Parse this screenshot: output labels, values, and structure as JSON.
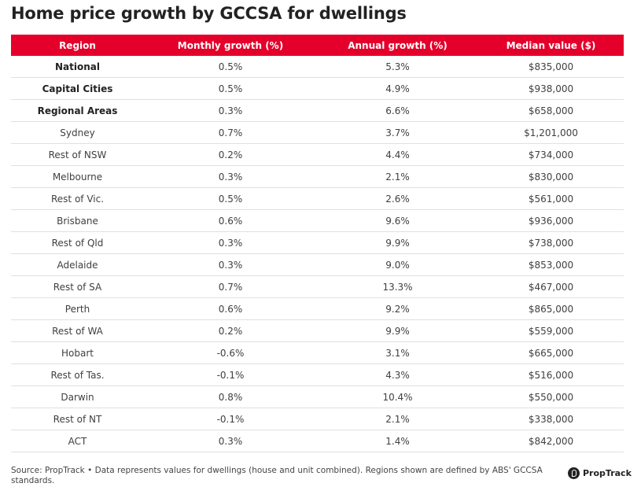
{
  "title": "Home price growth by GCCSA for dwellings",
  "chart_data": {
    "type": "table",
    "title": "Home price growth by GCCSA for dwellings",
    "columns": [
      "Region",
      "Monthly growth (%)",
      "Annual growth (%)",
      "Median value ($)"
    ],
    "rows": [
      {
        "region": "National",
        "monthly": "0.5%",
        "annual": "5.3%",
        "median": "$835,000",
        "bold": true
      },
      {
        "region": "Capital Cities",
        "monthly": "0.5%",
        "annual": "4.9%",
        "median": "$938,000",
        "bold": true
      },
      {
        "region": "Regional Areas",
        "monthly": "0.3%",
        "annual": "6.6%",
        "median": "$658,000",
        "bold": true
      },
      {
        "region": "Sydney",
        "monthly": "0.7%",
        "annual": "3.7%",
        "median": "$1,201,000",
        "bold": false
      },
      {
        "region": "Rest of NSW",
        "monthly": "0.2%",
        "annual": "4.4%",
        "median": "$734,000",
        "bold": false
      },
      {
        "region": "Melbourne",
        "monthly": "0.3%",
        "annual": "2.1%",
        "median": "$830,000",
        "bold": false
      },
      {
        "region": "Rest of Vic.",
        "monthly": "0.5%",
        "annual": "2.6%",
        "median": "$561,000",
        "bold": false
      },
      {
        "region": "Brisbane",
        "monthly": "0.6%",
        "annual": "9.6%",
        "median": "$936,000",
        "bold": false
      },
      {
        "region": "Rest of Qld",
        "monthly": "0.3%",
        "annual": "9.9%",
        "median": "$738,000",
        "bold": false
      },
      {
        "region": "Adelaide",
        "monthly": "0.3%",
        "annual": "9.0%",
        "median": "$853,000",
        "bold": false
      },
      {
        "region": "Rest of SA",
        "monthly": "0.7%",
        "annual": "13.3%",
        "median": "$467,000",
        "bold": false
      },
      {
        "region": "Perth",
        "monthly": "0.6%",
        "annual": "9.2%",
        "median": "$865,000",
        "bold": false
      },
      {
        "region": "Rest of WA",
        "monthly": "0.2%",
        "annual": "9.9%",
        "median": "$559,000",
        "bold": false
      },
      {
        "region": "Hobart",
        "monthly": "-0.6%",
        "annual": "3.1%",
        "median": "$665,000",
        "bold": false
      },
      {
        "region": "Rest of Tas.",
        "monthly": "-0.1%",
        "annual": "4.3%",
        "median": "$516,000",
        "bold": false
      },
      {
        "region": "Darwin",
        "monthly": "0.8%",
        "annual": "10.4%",
        "median": "$550,000",
        "bold": false
      },
      {
        "region": "Rest of NT",
        "monthly": "-0.1%",
        "annual": "2.1%",
        "median": "$338,000",
        "bold": false
      },
      {
        "region": "ACT",
        "monthly": "0.3%",
        "annual": "1.4%",
        "median": "$842,000",
        "bold": false
      }
    ]
  },
  "footer": {
    "source": "Source: PropTrack • Data represents values for dwellings (house and unit combined). Regions shown are defined by ABS' GCCSA standards."
  },
  "brand": {
    "name": "PropTrack",
    "icon": "proptrack-logo-icon"
  },
  "colors": {
    "header_bg": "#e4002b",
    "header_text": "#ffffff",
    "row_border": "#e0e0e0"
  }
}
